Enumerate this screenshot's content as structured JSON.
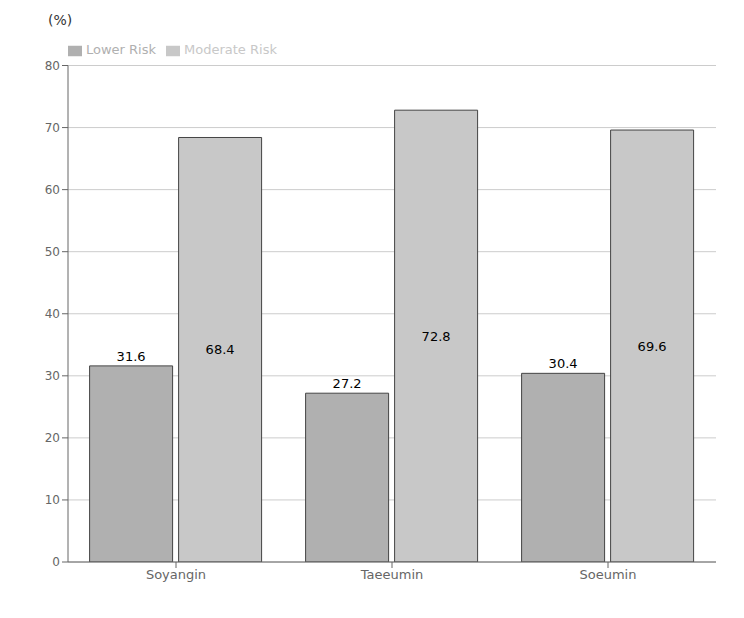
{
  "chart_data": {
    "type": "bar",
    "ylabel": "(%)",
    "categories": [
      "Soyangin",
      "Taeeumin",
      "Soeumin"
    ],
    "series": [
      {
        "name": "Lower Risk",
        "color": "#b0b0b0",
        "values": [
          31.6,
          27.2,
          30.4
        ]
      },
      {
        "name": "Moderate Risk",
        "color": "#c8c8c8",
        "values": [
          68.4,
          72.8,
          69.6
        ]
      }
    ],
    "ylim": [
      0,
      80
    ],
    "yticks": [
      0,
      10,
      20,
      30,
      40,
      50,
      60,
      70,
      80
    ],
    "grid": true,
    "legend": "upper left",
    "data_labels": true
  }
}
